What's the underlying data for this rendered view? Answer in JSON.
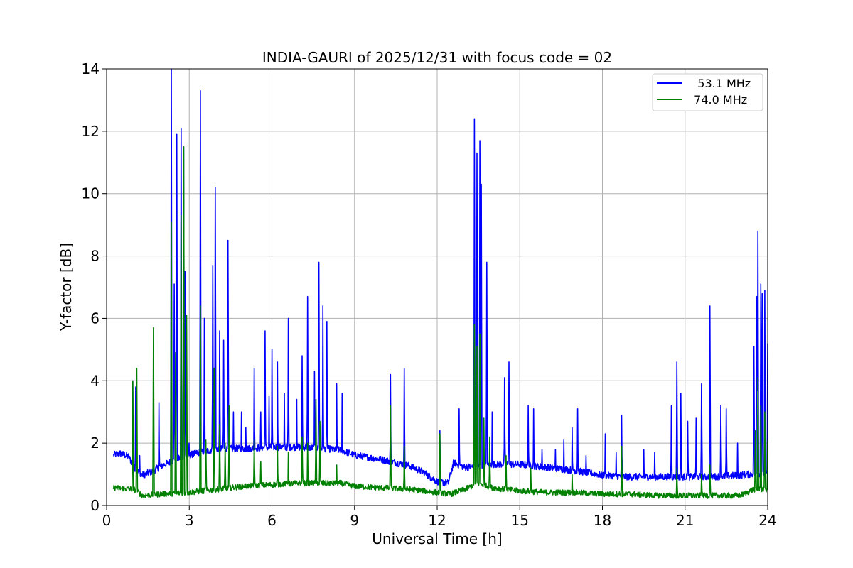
{
  "chart_data": {
    "type": "line",
    "title": "INDIA-GAURI of 2025/12/31 with focus code = 02",
    "xlabel": "Universal Time [h]",
    "ylabel": "Y-factor [dB]",
    "xlim": [
      0,
      24
    ],
    "ylim": [
      0,
      14
    ],
    "xticks": [
      "0",
      "3",
      "6",
      "9",
      "12",
      "15",
      "18",
      "21",
      "24"
    ],
    "yticks": [
      "0",
      "2",
      "4",
      "6",
      "8",
      "10",
      "12",
      "14"
    ],
    "grid": true,
    "legend": "top-right",
    "series": [
      {
        "name": "   53.1 MHz",
        "color": "#0000ff",
        "baseline": [
          [
            0.25,
            1.6
          ],
          [
            0.5,
            1.65
          ],
          [
            0.8,
            1.55
          ],
          [
            1.0,
            1.2
          ],
          [
            1.3,
            0.95
          ],
          [
            1.6,
            1.05
          ],
          [
            2.0,
            1.25
          ],
          [
            2.5,
            1.45
          ],
          [
            3.0,
            1.6
          ],
          [
            3.5,
            1.7
          ],
          [
            4.0,
            1.8
          ],
          [
            5.0,
            1.8
          ],
          [
            6.0,
            1.85
          ],
          [
            7.0,
            1.85
          ],
          [
            8.0,
            1.8
          ],
          [
            8.5,
            1.75
          ],
          [
            9.0,
            1.6
          ],
          [
            10.0,
            1.45
          ],
          [
            11.0,
            1.25
          ],
          [
            11.5,
            1.05
          ],
          [
            12.0,
            0.75
          ],
          [
            12.4,
            0.7
          ],
          [
            12.6,
            1.35
          ],
          [
            13.0,
            1.2
          ],
          [
            14.0,
            1.3
          ],
          [
            15.0,
            1.3
          ],
          [
            16.0,
            1.2
          ],
          [
            17.0,
            1.1
          ],
          [
            18.0,
            0.95
          ],
          [
            19.0,
            0.9
          ],
          [
            20.0,
            0.9
          ],
          [
            21.0,
            0.9
          ],
          [
            22.0,
            0.9
          ],
          [
            23.0,
            0.95
          ],
          [
            23.5,
            1.0
          ],
          [
            24.0,
            1.0
          ]
        ],
        "spikes": [
          [
            0.95,
            4.0
          ],
          [
            1.05,
            3.8
          ],
          [
            1.2,
            1.6
          ],
          [
            1.9,
            3.3
          ],
          [
            2.35,
            14.0
          ],
          [
            2.45,
            7.1
          ],
          [
            2.55,
            11.9
          ],
          [
            2.7,
            12.1
          ],
          [
            2.8,
            11.5
          ],
          [
            2.85,
            7.5
          ],
          [
            3.0,
            2.0
          ],
          [
            3.4,
            13.3
          ],
          [
            3.55,
            6.0
          ],
          [
            3.85,
            7.7
          ],
          [
            3.95,
            10.2
          ],
          [
            4.1,
            5.6
          ],
          [
            4.25,
            5.3
          ],
          [
            4.4,
            8.5
          ],
          [
            4.6,
            3.0
          ],
          [
            4.9,
            3.0
          ],
          [
            5.05,
            2.5
          ],
          [
            5.35,
            4.4
          ],
          [
            5.6,
            3.0
          ],
          [
            5.75,
            5.6
          ],
          [
            5.9,
            3.5
          ],
          [
            6.0,
            5.0
          ],
          [
            6.2,
            4.6
          ],
          [
            6.45,
            3.6
          ],
          [
            6.6,
            6.0
          ],
          [
            6.9,
            3.4
          ],
          [
            7.1,
            4.8
          ],
          [
            7.3,
            6.7
          ],
          [
            7.55,
            4.3
          ],
          [
            7.7,
            7.8
          ],
          [
            7.85,
            6.4
          ],
          [
            8.0,
            5.9
          ],
          [
            8.35,
            3.9
          ],
          [
            8.55,
            3.6
          ],
          [
            10.3,
            4.2
          ],
          [
            10.8,
            4.4
          ],
          [
            12.1,
            2.4
          ],
          [
            12.8,
            3.1
          ],
          [
            13.35,
            12.4
          ],
          [
            13.45,
            11.3
          ],
          [
            13.55,
            11.7
          ],
          [
            13.6,
            10.3
          ],
          [
            13.8,
            7.8
          ],
          [
            14.0,
            3.0
          ],
          [
            14.45,
            4.1
          ],
          [
            14.6,
            4.6
          ],
          [
            15.3,
            3.2
          ],
          [
            15.5,
            3.1
          ],
          [
            15.8,
            1.8
          ],
          [
            16.3,
            1.8
          ],
          [
            16.6,
            2.1
          ],
          [
            16.9,
            2.5
          ],
          [
            17.1,
            3.1
          ],
          [
            17.4,
            1.6
          ],
          [
            18.1,
            2.3
          ],
          [
            18.5,
            1.7
          ],
          [
            18.7,
            2.9
          ],
          [
            19.5,
            1.8
          ],
          [
            19.9,
            1.7
          ],
          [
            20.5,
            3.2
          ],
          [
            20.7,
            4.6
          ],
          [
            20.85,
            3.6
          ],
          [
            21.1,
            2.7
          ],
          [
            21.4,
            2.8
          ],
          [
            21.6,
            3.9
          ],
          [
            21.9,
            6.4
          ],
          [
            22.3,
            3.2
          ],
          [
            22.5,
            3.1
          ],
          [
            22.9,
            2.0
          ],
          [
            23.5,
            5.1
          ],
          [
            23.6,
            6.7
          ],
          [
            23.65,
            8.8
          ],
          [
            23.75,
            7.1
          ],
          [
            23.8,
            6.8
          ],
          [
            23.9,
            6.9
          ],
          [
            24.0,
            5.2
          ]
        ]
      },
      {
        "name": "  74.0 MHz",
        "color": "#008000",
        "baseline": [
          [
            0.25,
            0.55
          ],
          [
            1.0,
            0.5
          ],
          [
            1.3,
            0.3
          ],
          [
            2.0,
            0.35
          ],
          [
            3.0,
            0.4
          ],
          [
            3.5,
            0.45
          ],
          [
            4.0,
            0.5
          ],
          [
            5.0,
            0.6
          ],
          [
            6.0,
            0.65
          ],
          [
            7.0,
            0.7
          ],
          [
            8.0,
            0.7
          ],
          [
            8.5,
            0.7
          ],
          [
            9.0,
            0.6
          ],
          [
            10.0,
            0.55
          ],
          [
            11.0,
            0.5
          ],
          [
            12.0,
            0.4
          ],
          [
            12.5,
            0.35
          ],
          [
            13.0,
            0.5
          ],
          [
            13.5,
            0.7
          ],
          [
            14.0,
            0.55
          ],
          [
            15.0,
            0.45
          ],
          [
            16.0,
            0.4
          ],
          [
            17.0,
            0.4
          ],
          [
            18.0,
            0.35
          ],
          [
            19.0,
            0.35
          ],
          [
            20.0,
            0.3
          ],
          [
            21.0,
            0.3
          ],
          [
            22.0,
            0.3
          ],
          [
            23.0,
            0.3
          ],
          [
            23.5,
            0.5
          ],
          [
            24.0,
            0.5
          ]
        ],
        "spikes": [
          [
            0.95,
            4.0
          ],
          [
            1.1,
            4.4
          ],
          [
            1.7,
            5.7
          ],
          [
            2.35,
            9.1
          ],
          [
            2.5,
            4.9
          ],
          [
            2.7,
            9.3
          ],
          [
            2.8,
            11.5
          ],
          [
            2.9,
            6.1
          ],
          [
            3.4,
            6.4
          ],
          [
            3.6,
            2.1
          ],
          [
            3.9,
            4.4
          ],
          [
            4.1,
            2.6
          ],
          [
            4.3,
            2.0
          ],
          [
            4.45,
            3.2
          ],
          [
            5.35,
            2.1
          ],
          [
            5.6,
            1.4
          ],
          [
            6.2,
            1.9
          ],
          [
            6.6,
            1.7
          ],
          [
            7.1,
            2.2
          ],
          [
            7.3,
            2.0
          ],
          [
            7.6,
            3.4
          ],
          [
            7.75,
            2.7
          ],
          [
            8.35,
            1.3
          ],
          [
            10.3,
            3.2
          ],
          [
            10.8,
            1.9
          ],
          [
            12.1,
            2.3
          ],
          [
            13.35,
            5.8
          ],
          [
            13.45,
            5.1
          ],
          [
            13.55,
            5.5
          ],
          [
            13.7,
            2.8
          ],
          [
            13.9,
            2.2
          ],
          [
            14.5,
            1.6
          ],
          [
            15.4,
            1.2
          ],
          [
            16.9,
            1.0
          ],
          [
            18.7,
            1.9
          ],
          [
            20.7,
            1.2
          ],
          [
            21.6,
            1.0
          ],
          [
            21.9,
            1.3
          ],
          [
            23.55,
            2.4
          ],
          [
            23.65,
            4.1
          ],
          [
            23.75,
            3.2
          ],
          [
            23.9,
            3.0
          ],
          [
            24.0,
            2.1
          ]
        ]
      }
    ]
  }
}
